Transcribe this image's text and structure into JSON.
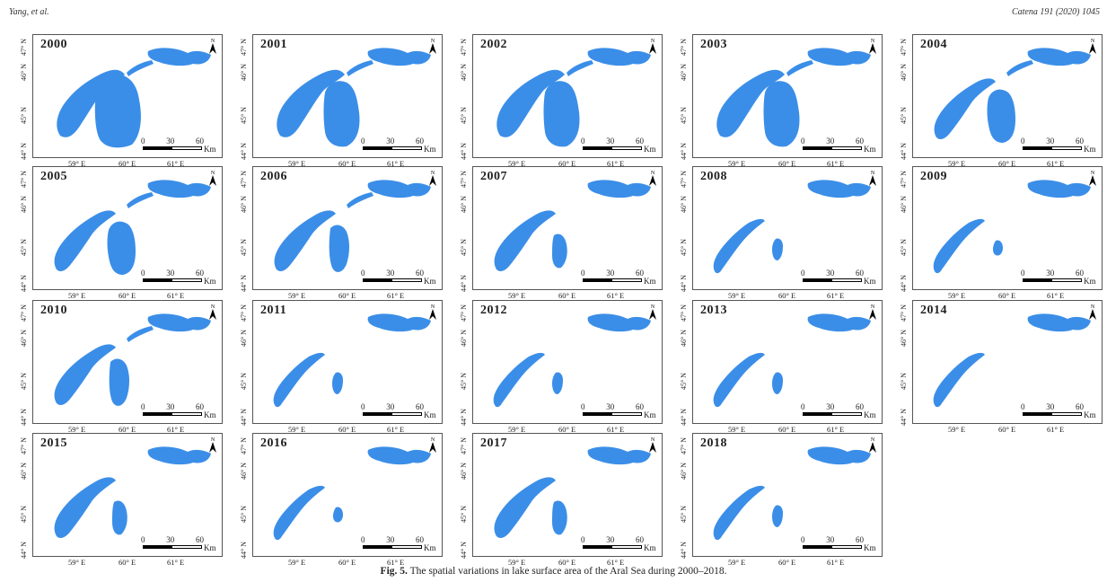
{
  "header": {
    "left": "Yang, et al.",
    "right": "Catena 191 (2020) 1045"
  },
  "lake_color": "#3b8ee8",
  "north_label": "N",
  "scale": {
    "zero": "0",
    "mid": "30",
    "max": "60",
    "unit": "Km"
  },
  "lat_labels": [
    "47° N",
    "46° N",
    "45° N",
    "44° N"
  ],
  "lon_labels": [
    "59° E",
    "60° E",
    "61° E"
  ],
  "panels": [
    {
      "year": "2000",
      "stage": 0
    },
    {
      "year": "2001",
      "stage": 1
    },
    {
      "year": "2002",
      "stage": 1
    },
    {
      "year": "2003",
      "stage": 1
    },
    {
      "year": "2004",
      "stage": 2
    },
    {
      "year": "2005",
      "stage": 2
    },
    {
      "year": "2006",
      "stage": 3
    },
    {
      "year": "2007",
      "stage": 4
    },
    {
      "year": "2008",
      "stage": 5
    },
    {
      "year": "2009",
      "stage": 6
    },
    {
      "year": "2010",
      "stage": 3
    },
    {
      "year": "2011",
      "stage": 5
    },
    {
      "year": "2012",
      "stage": 5
    },
    {
      "year": "2013",
      "stage": 5
    },
    {
      "year": "2014",
      "stage": 7
    },
    {
      "year": "2015",
      "stage": 4
    },
    {
      "year": "2016",
      "stage": 6
    },
    {
      "year": "2017",
      "stage": 4
    },
    {
      "year": "2018",
      "stage": 5
    }
  ],
  "caption": {
    "label": "Fig. 5.",
    "text": "The spatial variations in lake surface area of the Aral Sea during 2000–2018."
  }
}
